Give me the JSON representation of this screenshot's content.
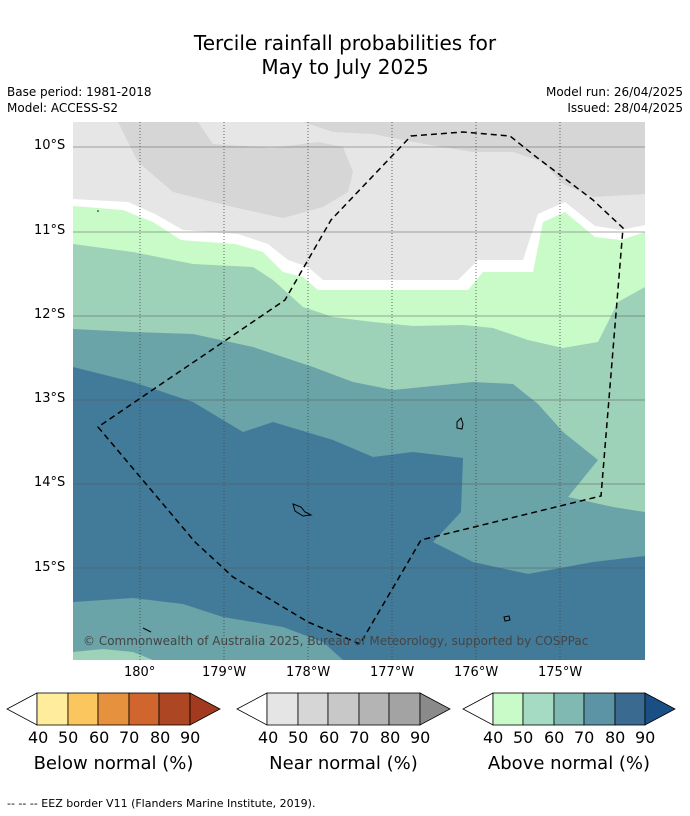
{
  "title": {
    "line1": "Tercile rainfall probabilities for",
    "line2": "May to July 2025"
  },
  "meta": {
    "base_period": "Base period: 1981-2018",
    "model": "Model: ACCESS-S2",
    "model_run": "Model run: 26/04/2025",
    "issued": "Issued: 28/04/2025"
  },
  "map": {
    "lat_ticks": [
      "10°S",
      "11°S",
      "12°S",
      "13°S",
      "14°S",
      "15°S"
    ],
    "lon_ticks": [
      "180°",
      "179°W",
      "178°W",
      "177°W",
      "176°W",
      "175°W"
    ],
    "copyright": "© Commonwealth of Australia 2025, Bureau of Meteorology, supported by COSPPac",
    "colors": {
      "near_normal": [
        "#e6e6e6",
        "#d6d6d6"
      ],
      "above_normal": [
        "#c9fbc9",
        "#9dd1b8",
        "#6aa3a8",
        "#427b99"
      ]
    }
  },
  "legend": {
    "below": {
      "label": "Below normal (%)",
      "ticks": [
        "40",
        "50",
        "60",
        "70",
        "80",
        "90"
      ],
      "colors": [
        "#ffffff",
        "#ffec9c",
        "#fcc65f",
        "#e6913d",
        "#d0652e",
        "#ad4623",
        "#a23a1f"
      ]
    },
    "near": {
      "label": "Near normal (%)",
      "ticks": [
        "40",
        "50",
        "60",
        "70",
        "80",
        "90"
      ],
      "colors": [
        "#ffffff",
        "#e5e5e5",
        "#d6d6d6",
        "#c8c8c8",
        "#b4b4b4",
        "#a3a3a3",
        "#8a8a8a"
      ]
    },
    "above": {
      "label": "Above normal (%)",
      "ticks": [
        "40",
        "50",
        "60",
        "70",
        "80",
        "90"
      ],
      "colors": [
        "#ffffff",
        "#c9fbc9",
        "#a4dbc2",
        "#80b8b2",
        "#5c94a6",
        "#3b6a91",
        "#1a4f86"
      ]
    }
  },
  "footnote": "--  --  -- EEZ border V11 (Flanders Marine Institute, 2019)."
}
